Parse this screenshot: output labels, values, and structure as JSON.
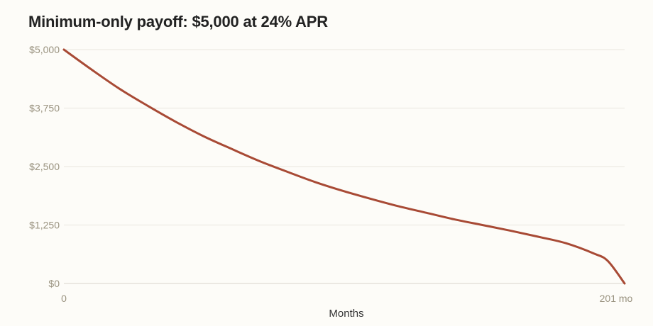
{
  "chart_data": {
    "type": "line",
    "title": "Minimum-only payoff: $5,000 at 24% APR",
    "xlabel": "Months",
    "ylabel": "",
    "xlim": [
      0,
      201
    ],
    "ylim": [
      0,
      5000
    ],
    "x_ticks": [
      {
        "value": 0,
        "label": "0"
      },
      {
        "value": 201,
        "label": "201 mo"
      }
    ],
    "y_ticks": [
      {
        "value": 0,
        "label": "$0"
      },
      {
        "value": 1250,
        "label": "$1,250"
      },
      {
        "value": 2500,
        "label": "$2,500"
      },
      {
        "value": 3750,
        "label": "$3,750"
      },
      {
        "value": 5000,
        "label": "$5,000"
      }
    ],
    "grid": true,
    "line_color": "#a84a35",
    "series": [
      {
        "x": [
          0,
          10,
          20,
          30,
          40,
          50,
          60,
          70,
          80,
          90,
          100,
          110,
          120,
          130,
          140,
          150,
          160,
          170,
          180,
          190,
          195,
          201
        ],
        "values": [
          5000,
          4570,
          4160,
          3800,
          3460,
          3150,
          2880,
          2620,
          2390,
          2170,
          1980,
          1810,
          1650,
          1510,
          1370,
          1250,
          1130,
          1000,
          860,
          640,
          480,
          0
        ]
      }
    ]
  }
}
